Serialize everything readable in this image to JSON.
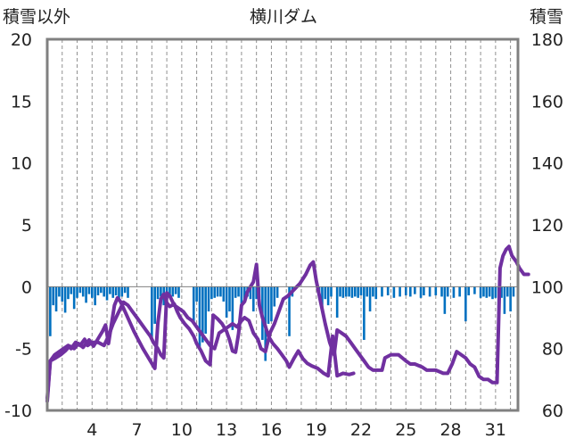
{
  "chart_data": {
    "type": "combo",
    "title": "横川ダム",
    "left_axis": {
      "label": "積雪以外",
      "min": -10,
      "max": 20,
      "ticks": [
        20,
        15,
        10,
        5,
        0,
        -5,
        -10
      ]
    },
    "right_axis": {
      "label": "積雪",
      "min": 60,
      "max": 180,
      "ticks": [
        180,
        160,
        140,
        120,
        100,
        80,
        60
      ]
    },
    "x_axis": {
      "min": 1,
      "max": 32.5,
      "tick_labels": [
        4,
        7,
        10,
        13,
        16,
        19,
        22,
        25,
        28,
        31
      ]
    },
    "grid": {
      "vertical_dashed": true,
      "horizontal": false
    },
    "colors": {
      "line": "#7030A0",
      "bars": "#0070C0",
      "frame": "#808080",
      "grid": "#909090"
    },
    "series": [
      {
        "kind": "line",
        "axis": "right",
        "points": [
          [
            1.0,
            63
          ],
          [
            1.2,
            76
          ],
          [
            1.5,
            78
          ],
          [
            1.8,
            79
          ],
          [
            2.1,
            80
          ],
          [
            2.4,
            81
          ],
          [
            2.6,
            80
          ],
          [
            2.9,
            82
          ],
          [
            3.2,
            81
          ],
          [
            3.5,
            83
          ],
          [
            3.7,
            81
          ],
          [
            4.0,
            82
          ],
          [
            4.4,
            82
          ],
          [
            4.8,
            81
          ],
          [
            5.1,
            84
          ],
          [
            5.4,
            88
          ],
          [
            5.7,
            91
          ],
          [
            5.9,
            93
          ],
          [
            6.1,
            95
          ],
          [
            6.4,
            94
          ],
          [
            6.7,
            92
          ],
          [
            7.0,
            90
          ],
          [
            7.3,
            88
          ],
          [
            7.6,
            86
          ],
          [
            7.9,
            84
          ],
          [
            8.1,
            82
          ],
          [
            8.4,
            80
          ],
          [
            8.6,
            78
          ],
          [
            8.8,
            77
          ],
          [
            9.0,
            98
          ],
          [
            9.2,
            97
          ],
          [
            9.5,
            94
          ],
          [
            9.8,
            93
          ],
          [
            10.1,
            92
          ],
          [
            10.4,
            90
          ],
          [
            10.7,
            89
          ],
          [
            11.0,
            87
          ],
          [
            11.3,
            85
          ],
          [
            11.6,
            83
          ],
          [
            11.9,
            81
          ],
          [
            12.2,
            80
          ],
          [
            12.5,
            85
          ],
          [
            12.8,
            86
          ],
          [
            13.1,
            87
          ],
          [
            13.4,
            88
          ],
          [
            13.7,
            87
          ],
          [
            14.0,
            89
          ],
          [
            14.2,
            90
          ],
          [
            14.5,
            89
          ],
          [
            14.8,
            85
          ],
          [
            15.1,
            83
          ],
          [
            15.3,
            80
          ],
          [
            15.6,
            79
          ],
          [
            15.9,
            85
          ],
          [
            16.2,
            88
          ],
          [
            16.5,
            92
          ],
          [
            16.8,
            96
          ],
          [
            17.1,
            97
          ],
          [
            17.5,
            99
          ],
          [
            17.9,
            101
          ],
          [
            18.3,
            104
          ],
          [
            18.6,
            107
          ],
          [
            18.8,
            108
          ],
          [
            19.0,
            102
          ],
          [
            19.3,
            95
          ],
          [
            19.6,
            88
          ],
          [
            19.9,
            82
          ],
          [
            20.2,
            78
          ],
          [
            20.4,
            86
          ],
          [
            20.7,
            85
          ],
          [
            21.0,
            84
          ],
          [
            21.3,
            82
          ],
          [
            21.6,
            80
          ],
          [
            21.9,
            78
          ],
          [
            22.2,
            76
          ],
          [
            22.5,
            74
          ],
          [
            22.8,
            73
          ],
          [
            23.1,
            73
          ],
          [
            23.4,
            73
          ],
          [
            23.6,
            77
          ],
          [
            24.0,
            78
          ],
          [
            24.5,
            78
          ],
          [
            25.0,
            76
          ],
          [
            25.3,
            75
          ],
          [
            25.6,
            75
          ],
          [
            26.1,
            74
          ],
          [
            26.4,
            73
          ],
          [
            26.7,
            73
          ],
          [
            27.0,
            73
          ],
          [
            27.5,
            72
          ],
          [
            27.8,
            72
          ],
          [
            28.1,
            75
          ],
          [
            28.4,
            79
          ],
          [
            28.7,
            78
          ],
          [
            29.0,
            77
          ],
          [
            29.3,
            75
          ],
          [
            29.6,
            74
          ],
          [
            29.9,
            71
          ],
          [
            30.2,
            70
          ],
          [
            30.5,
            70
          ],
          [
            30.8,
            69
          ],
          [
            31.1,
            69
          ],
          [
            31.3,
            106
          ],
          [
            31.5,
            110
          ],
          [
            31.7,
            112
          ],
          [
            31.9,
            113
          ],
          [
            32.1,
            110
          ],
          [
            32.4,
            108
          ],
          [
            32.6,
            106
          ],
          [
            32.9,
            104
          ],
          [
            33.2,
            104
          ]
        ]
      },
      {
        "kind": "line",
        "axis": "left",
        "points": [
          [
            1.0,
            -9.0
          ],
          [
            1.2,
            -6.0
          ],
          [
            1.5,
            -5.8
          ],
          [
            1.9,
            -5.5
          ],
          [
            2.2,
            -5.2
          ],
          [
            2.5,
            -4.8
          ],
          [
            2.8,
            -5.0
          ],
          [
            3.1,
            -4.6
          ],
          [
            3.4,
            -4.9
          ],
          [
            3.8,
            -4.3
          ],
          [
            4.1,
            -4.8
          ],
          [
            4.4,
            -4.2
          ],
          [
            4.7,
            -3.6
          ],
          [
            4.9,
            -3.1
          ],
          [
            5.1,
            -4.6
          ],
          [
            5.3,
            -3.0
          ],
          [
            5.5,
            -1.5
          ],
          [
            5.7,
            -0.9
          ],
          [
            5.9,
            -1.2
          ],
          [
            6.2,
            -2.0
          ],
          [
            6.5,
            -2.8
          ],
          [
            6.8,
            -3.6
          ],
          [
            7.1,
            -4.3
          ],
          [
            7.4,
            -5.0
          ],
          [
            7.7,
            -5.6
          ],
          [
            8.0,
            -6.2
          ],
          [
            8.2,
            -6.6
          ],
          [
            8.4,
            -3.0
          ],
          [
            8.6,
            -1.0
          ],
          [
            8.8,
            -0.6
          ],
          [
            9.0,
            -1.3
          ],
          [
            9.2,
            -1.6
          ],
          [
            9.5,
            -1.4
          ],
          [
            9.7,
            -2.0
          ],
          [
            9.9,
            -2.5
          ],
          [
            10.2,
            -3.0
          ],
          [
            10.5,
            -3.4
          ],
          [
            10.8,
            -4.0
          ],
          [
            11.0,
            -4.6
          ],
          [
            11.3,
            -5.2
          ],
          [
            11.6,
            -6.0
          ],
          [
            11.9,
            -6.3
          ],
          [
            12.1,
            -2.3
          ],
          [
            12.4,
            -2.6
          ],
          [
            12.7,
            -3.0
          ],
          [
            13.0,
            -3.6
          ],
          [
            13.2,
            -4.3
          ],
          [
            13.4,
            -5.2
          ],
          [
            13.6,
            -5.3
          ],
          [
            13.8,
            -3.8
          ],
          [
            14.0,
            -1.5
          ],
          [
            14.2,
            -1.2
          ],
          [
            14.4,
            -0.4
          ],
          [
            14.6,
            0.0
          ],
          [
            14.8,
            0.4
          ],
          [
            15.0,
            1.8
          ],
          [
            15.2,
            -1.5
          ],
          [
            15.4,
            -2.5
          ],
          [
            15.6,
            -3.2
          ],
          [
            15.8,
            -4.0
          ],
          [
            16.1,
            -4.6
          ],
          [
            16.4,
            -5.0
          ],
          [
            16.7,
            -5.5
          ],
          [
            17.0,
            -6.0
          ],
          [
            17.2,
            -6.5
          ],
          [
            17.5,
            -5.8
          ],
          [
            17.8,
            -5.2
          ],
          [
            18.1,
            -5.8
          ],
          [
            18.4,
            -6.2
          ],
          [
            18.7,
            -6.4
          ],
          [
            19.1,
            -6.6
          ],
          [
            19.5,
            -7.0
          ],
          [
            19.8,
            -7.2
          ],
          [
            20.1,
            -4.0
          ],
          [
            20.4,
            -7.2
          ],
          [
            20.8,
            -7.0
          ],
          [
            21.2,
            -7.1
          ],
          [
            21.5,
            -7.0
          ]
        ]
      },
      {
        "kind": "bars",
        "axis": "left",
        "values": [
          [
            1.0,
            -2.5
          ],
          [
            1.2,
            -4.0
          ],
          [
            1.4,
            -1.5
          ],
          [
            1.6,
            -2.0
          ],
          [
            1.8,
            -0.8
          ],
          [
            2.0,
            -1.2
          ],
          [
            2.2,
            -2.1
          ],
          [
            2.4,
            -1.0
          ],
          [
            2.6,
            -0.6
          ],
          [
            2.8,
            -1.8
          ],
          [
            3.0,
            -0.9
          ],
          [
            3.2,
            -0.5
          ],
          [
            3.4,
            -0.8
          ],
          [
            3.6,
            -1.3
          ],
          [
            3.8,
            -0.6
          ],
          [
            4.0,
            -0.9
          ],
          [
            4.2,
            -1.5
          ],
          [
            4.4,
            -0.7
          ],
          [
            4.6,
            -0.5
          ],
          [
            4.8,
            -0.8
          ],
          [
            5.0,
            -1.1
          ],
          [
            5.2,
            -0.6
          ],
          [
            5.4,
            -0.9
          ],
          [
            5.6,
            -0.7
          ],
          [
            5.8,
            -1.0
          ],
          [
            6.0,
            -0.8
          ],
          [
            6.2,
            -0.5
          ],
          [
            6.4,
            -0.9
          ],
          [
            8.0,
            -4.2
          ],
          [
            8.2,
            -3.0
          ],
          [
            8.4,
            -1.0
          ],
          [
            8.6,
            -0.8
          ],
          [
            8.8,
            -1.5
          ],
          [
            9.0,
            -1.2
          ],
          [
            9.2,
            -0.9
          ],
          [
            9.4,
            -0.8
          ],
          [
            9.6,
            -0.6
          ],
          [
            9.8,
            -0.9
          ],
          [
            10.8,
            -3.0
          ],
          [
            11.0,
            -1.2
          ],
          [
            11.2,
            -5.0
          ],
          [
            11.4,
            -4.5
          ],
          [
            11.6,
            -3.8
          ],
          [
            11.8,
            -2.0
          ],
          [
            12.0,
            -1.0
          ],
          [
            12.2,
            -0.9
          ],
          [
            12.4,
            -0.8
          ],
          [
            12.6,
            -0.8
          ],
          [
            12.8,
            -1.2
          ],
          [
            13.0,
            -2.5
          ],
          [
            13.2,
            -2.0
          ],
          [
            13.4,
            -3.5
          ],
          [
            13.6,
            -0.9
          ],
          [
            13.8,
            -0.8
          ],
          [
            14.0,
            -1.5
          ],
          [
            14.2,
            -1.0
          ],
          [
            14.4,
            -0.8
          ],
          [
            14.6,
            -1.0
          ],
          [
            14.8,
            -2.0
          ],
          [
            15.0,
            -1.0
          ],
          [
            15.2,
            -0.9
          ],
          [
            15.4,
            -4.3
          ],
          [
            15.6,
            -6.0
          ],
          [
            15.8,
            -3.0
          ],
          [
            16.0,
            -2.8
          ],
          [
            16.2,
            -1.6
          ],
          [
            16.4,
            -0.9
          ],
          [
            17.2,
            -4.0
          ],
          [
            17.4,
            -0.8
          ],
          [
            19.2,
            -0.9
          ],
          [
            19.4,
            -2.0
          ],
          [
            19.6,
            -1.0
          ],
          [
            19.8,
            -1.5
          ],
          [
            20.0,
            -0.8
          ],
          [
            20.4,
            -2.5
          ],
          [
            20.6,
            -0.8
          ],
          [
            20.8,
            -0.9
          ],
          [
            21.0,
            -0.8
          ],
          [
            21.2,
            -0.8
          ],
          [
            21.4,
            -0.9
          ],
          [
            21.6,
            -0.8
          ],
          [
            21.8,
            -0.9
          ],
          [
            22.0,
            -0.7
          ],
          [
            22.2,
            -4.3
          ],
          [
            22.4,
            -0.8
          ],
          [
            22.6,
            -2.0
          ],
          [
            22.8,
            -0.8
          ],
          [
            23.0,
            -1.0
          ],
          [
            23.4,
            -0.8
          ],
          [
            23.8,
            -0.7
          ],
          [
            24.2,
            -0.9
          ],
          [
            24.6,
            -0.8
          ],
          [
            25.0,
            -0.7
          ],
          [
            25.3,
            -0.8
          ],
          [
            25.6,
            -0.6
          ],
          [
            26.0,
            -0.9
          ],
          [
            26.2,
            -0.7
          ],
          [
            26.6,
            -0.8
          ],
          [
            27.0,
            -0.7
          ],
          [
            27.4,
            -0.8
          ],
          [
            27.6,
            -2.2
          ],
          [
            27.8,
            -0.8
          ],
          [
            28.2,
            -0.9
          ],
          [
            28.6,
            -0.8
          ],
          [
            29.0,
            -2.8
          ],
          [
            29.2,
            -0.7
          ],
          [
            29.6,
            -0.6
          ],
          [
            30.0,
            -0.9
          ],
          [
            30.2,
            -0.8
          ],
          [
            30.4,
            -0.9
          ],
          [
            30.6,
            -0.8
          ],
          [
            30.8,
            -1.0
          ],
          [
            31.0,
            -0.9
          ],
          [
            31.2,
            -3.0
          ],
          [
            31.4,
            -0.9
          ],
          [
            31.6,
            -2.2
          ],
          [
            31.8,
            -0.8
          ],
          [
            32.0,
            -2.0
          ],
          [
            32.2,
            -0.8
          ]
        ]
      }
    ]
  }
}
